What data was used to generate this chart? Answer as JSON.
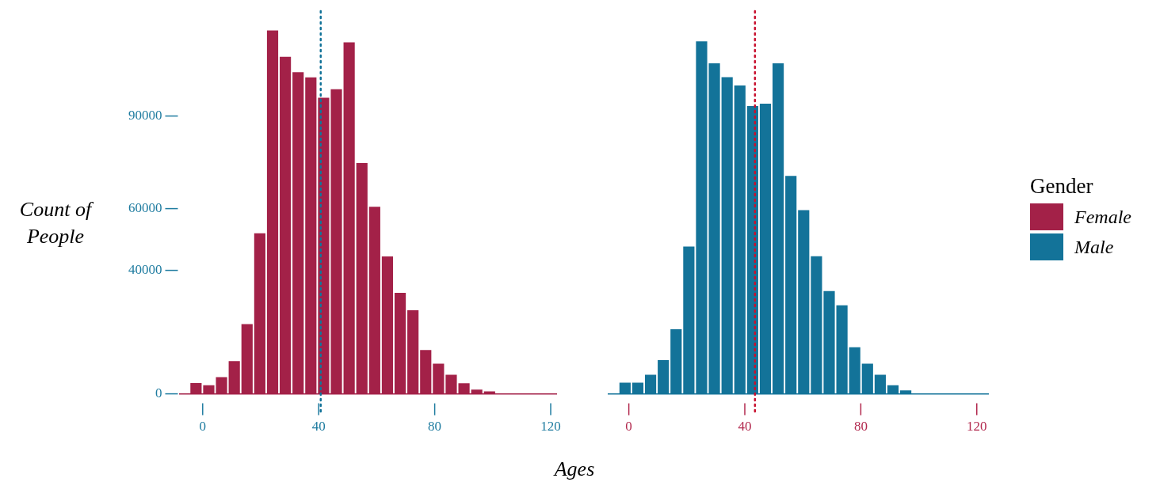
{
  "chart_data": [
    {
      "type": "histogram",
      "ylabel": "Count of People",
      "xlabel": "Ages",
      "bins": [
        -4.5,
        -0.1,
        4.3,
        8.7,
        13.1,
        17.5,
        21.9,
        26.3,
        30.7,
        35.1,
        39.5,
        43.9,
        48.3,
        52.7,
        57.1,
        61.5,
        65.9,
        70.3,
        74.7,
        79.1,
        83.5,
        87.9,
        92.3,
        96.7,
        101.1
      ],
      "series": [
        {
          "name": "Female",
          "color": "#a32148",
          "values": [
            3500,
            2800,
            5400,
            10600,
            22600,
            52000,
            117700,
            109200,
            104200,
            102500,
            95900,
            98700,
            113900,
            74800,
            60600,
            44500,
            32700,
            27100,
            14200,
            9800,
            6200,
            3400,
            1400,
            800
          ]
        }
      ],
      "xlim": [
        -8,
        122
      ],
      "xticks": [
        0,
        40,
        80,
        120
      ],
      "ylim": [
        0,
        124000
      ],
      "yticks": [
        0,
        40000,
        60000,
        90000
      ],
      "ref_lines": [
        {
          "axis": "x",
          "value": 40.7,
          "color": "#137399",
          "line_style": "dotted"
        }
      ],
      "legend": "right"
    },
    {
      "type": "histogram",
      "legend_title": "Gender",
      "bins": [
        -3.5,
        0.9,
        5.3,
        9.7,
        14.1,
        18.5,
        22.9,
        27.3,
        31.7,
        36.1,
        40.5,
        44.9,
        49.3,
        53.7,
        58.1,
        62.5,
        66.9,
        71.3,
        75.7,
        80.1,
        84.5,
        88.9,
        93.3,
        97.7
      ],
      "series": [
        {
          "name": "Male",
          "color": "#137399",
          "values": [
            3600,
            3600,
            6200,
            10900,
            20900,
            47700,
            114200,
            107100,
            102600,
            99900,
            93200,
            94000,
            107100,
            70600,
            59500,
            44600,
            33300,
            28700,
            15100,
            9800,
            6200,
            2800,
            1100
          ]
        }
      ],
      "xlim": [
        -7,
        124
      ],
      "xticks": [
        0,
        40,
        80,
        120
      ],
      "ylim": [
        0,
        124000
      ],
      "yticks": [
        0,
        40000,
        60000,
        90000
      ],
      "tick_labels": "x",
      "ref_lines": [
        {
          "axis": "x",
          "value": 43.5,
          "color": "#c8102e",
          "line_style": "dotted"
        }
      ],
      "legend": "right"
    }
  ]
}
